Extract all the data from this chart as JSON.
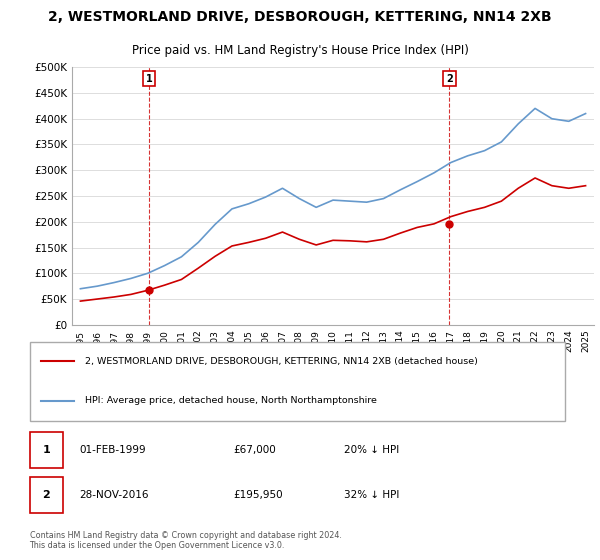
{
  "title": "2, WESTMORLAND DRIVE, DESBOROUGH, KETTERING, NN14 2XB",
  "subtitle": "Price paid vs. HM Land Registry's House Price Index (HPI)",
  "legend_line1": "2, WESTMORLAND DRIVE, DESBOROUGH, KETTERING, NN14 2XB (detached house)",
  "legend_line2": "HPI: Average price, detached house, North Northamptonshire",
  "footnote": "Contains HM Land Registry data © Crown copyright and database right 2024.\nThis data is licensed under the Open Government Licence v3.0.",
  "transaction1_label": "1",
  "transaction1_date": "01-FEB-1999",
  "transaction1_price": "£67,000",
  "transaction1_hpi": "20% ↓ HPI",
  "transaction1_year": 1999.08,
  "transaction1_value": 67000,
  "transaction2_label": "2",
  "transaction2_date": "28-NOV-2016",
  "transaction2_price": "£195,950",
  "transaction2_hpi": "32% ↓ HPI",
  "transaction2_year": 2016.91,
  "transaction2_value": 195950,
  "red_color": "#cc0000",
  "blue_color": "#6699cc",
  "marker_box_color": "#cc0000",
  "ylim": [
    0,
    500000
  ],
  "yticks": [
    0,
    50000,
    100000,
    150000,
    200000,
    250000,
    300000,
    350000,
    400000,
    450000,
    500000
  ],
  "xlim_start": 1994.5,
  "xlim_end": 2025.5,
  "background_color": "#ffffff",
  "grid_color": "#dddddd"
}
